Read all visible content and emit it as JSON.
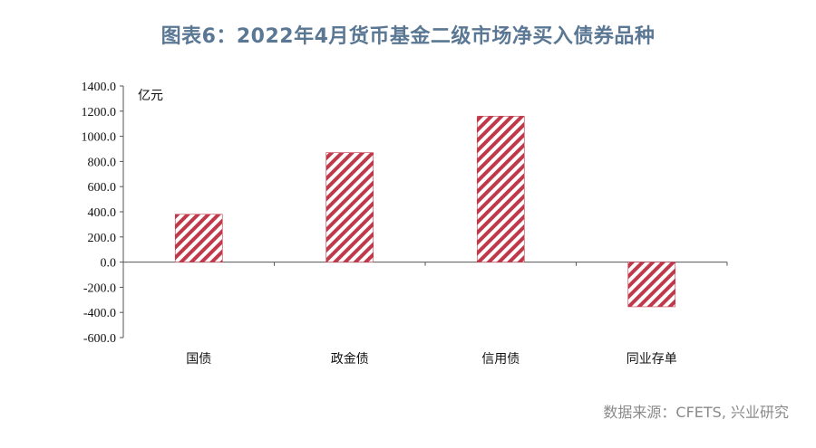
{
  "title": "图表6：2022年4月货币基金二级市场净买入债券品种",
  "source": "数据来源：CFETS, 兴业研究",
  "colors": {
    "bar": "#c0394b",
    "title": "#5a7793"
  },
  "chart_data": {
    "type": "bar",
    "title": "图表6：2022年4月货币基金二级市场净买入债券品种",
    "unit": "亿元",
    "categories": [
      "国债",
      "政金债",
      "信用债",
      "同业存单"
    ],
    "values": [
      380,
      870,
      1160,
      -355
    ],
    "ylim": [
      -600,
      1400
    ],
    "yticks": [
      "1400.0",
      "1200.0",
      "1000.0",
      "800.0",
      "600.0",
      "400.0",
      "200.0",
      "0.0",
      "-200.0",
      "-400.0",
      "-600.0"
    ],
    "grid": false,
    "bar_pattern": "diagonal-hatch"
  }
}
